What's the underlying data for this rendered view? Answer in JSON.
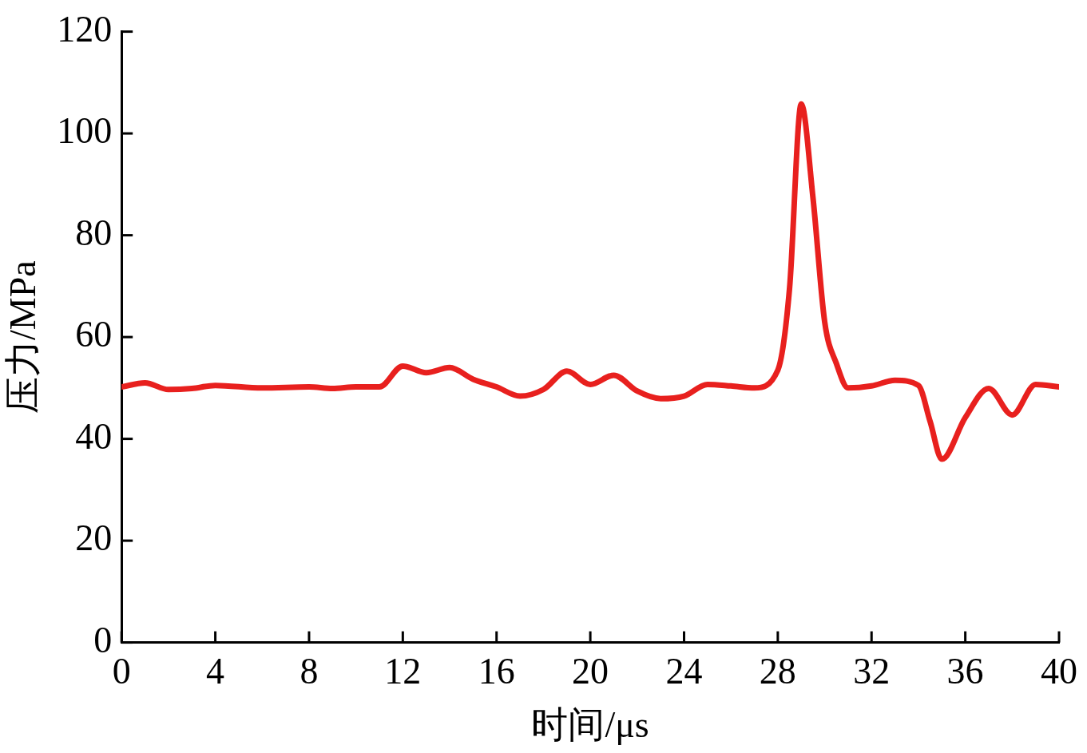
{
  "chart_data": {
    "type": "line",
    "xlabel": "时间/μs",
    "ylabel": "压力/MPa",
    "xlim": [
      0,
      40
    ],
    "xticks": [
      0,
      4,
      8,
      12,
      16,
      20,
      24,
      28,
      32,
      36,
      40
    ],
    "ylim": [
      0,
      120
    ],
    "yticks": [
      0,
      20,
      40,
      60,
      80,
      100,
      120
    ],
    "grid": false,
    "legend": false,
    "marker": "none",
    "line_style": "solid",
    "series": [
      {
        "color": "#e8201e",
        "x": [
          0,
          1,
          2,
          3,
          4,
          6,
          8,
          9,
          10,
          11,
          12,
          13,
          14,
          15,
          16,
          17,
          18,
          19,
          20,
          21,
          22,
          23,
          24,
          25,
          26,
          27,
          28,
          28.5,
          29,
          29.5,
          30,
          30.5,
          31,
          32,
          33,
          34,
          34.5,
          35,
          36,
          37,
          38,
          39,
          40
        ],
        "values": [
          50.2,
          51,
          49.7,
          49.9,
          50.5,
          50,
          50.2,
          49.9,
          50.2,
          50.2,
          54.3,
          53,
          54,
          51.7,
          50.2,
          48.4,
          49.7,
          53.3,
          50.7,
          52.5,
          49.4,
          47.9,
          48.4,
          50.7,
          50.4,
          50,
          53.5,
          69.5,
          105.8,
          87.4,
          63,
          54.8,
          50,
          50.4,
          51.5,
          50.5,
          43.4,
          36,
          44.2,
          49.9,
          44.7,
          50.7,
          50.2
        ]
      }
    ]
  }
}
